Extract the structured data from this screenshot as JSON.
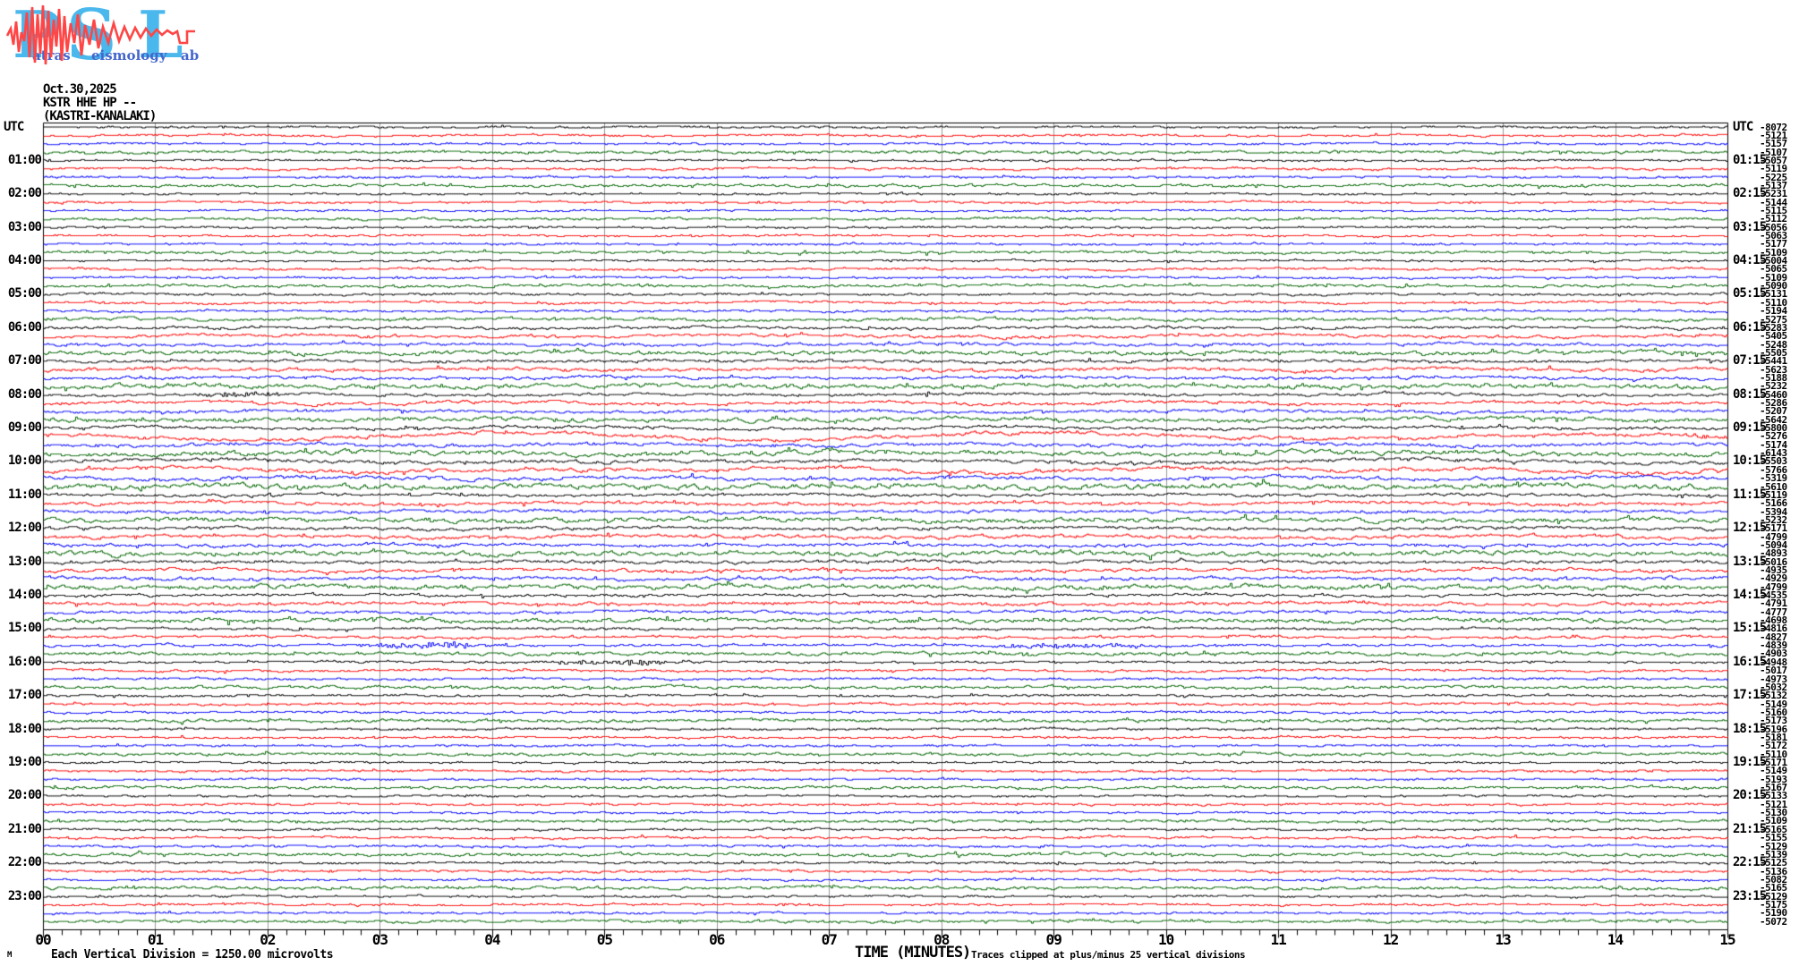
{
  "logo": {
    "letter_p": "P",
    "letter_s": "S",
    "letter_l": "L",
    "word_atras": "atras",
    "word_eismology": "eismology",
    "word_ab": "ab",
    "letter_color": "#4ab8ec",
    "word_color": "#4466cc",
    "wave_color": "#ff4545"
  },
  "header": {
    "date": "Oct.30,2025",
    "station": "KSTR HHE HP --",
    "location": "(KASTRI-KANALAKI)"
  },
  "axis": {
    "utc_left": "UTC",
    "utc_right": "UTC",
    "left_times": [
      "01:00",
      "02:00",
      "03:00",
      "04:00",
      "05:00",
      "06:00",
      "07:00",
      "08:00",
      "09:00",
      "10:00",
      "11:00",
      "12:00",
      "13:00",
      "14:00",
      "15:00",
      "16:00",
      "17:00",
      "18:00",
      "19:00",
      "20:00",
      "21:00",
      "22:00",
      "23:00"
    ],
    "right_times": [
      "01:15",
      "02:15",
      "03:15",
      "04:15",
      "05:15",
      "06:15",
      "07:15",
      "08:15",
      "09:15",
      "10:15",
      "11:15",
      "12:15",
      "13:15",
      "14:15",
      "15:15",
      "16:15",
      "17:15",
      "18:15",
      "19:15",
      "20:15",
      "21:15",
      "22:15",
      "23:15"
    ],
    "x_labels": [
      "00",
      "01",
      "02",
      "03",
      "04",
      "05",
      "06",
      "07",
      "08",
      "09",
      "10",
      "11",
      "12",
      "13",
      "14",
      "15"
    ],
    "x_title": "TIME (MINUTES)"
  },
  "footer": {
    "mark": "M",
    "scale_note": "Each Vertical Division = 1250.00 microvolts",
    "clip_note": "Traces clipped at plus/minus 25 vertical divisions"
  },
  "chart_data": {
    "type": "line",
    "title": "KSTR HHE HP -- (KASTRI-KANALAKI) helicorder, Oct.30,2025",
    "xlabel": "TIME (MINUTES)",
    "x_range_minutes": [
      0,
      15
    ],
    "minor_tick_seconds": 10,
    "rows_per_hour": 4,
    "minutes_per_row": 15,
    "hours": [
      "00",
      "01",
      "02",
      "03",
      "04",
      "05",
      "06",
      "07",
      "08",
      "09",
      "10",
      "11",
      "12",
      "13",
      "14",
      "15",
      "16",
      "17",
      "18",
      "19",
      "20",
      "21",
      "22",
      "23"
    ],
    "trace_colors": [
      "#000000",
      "#ff0000",
      "#0000ff",
      "#006600"
    ],
    "grid_color": "#999999",
    "frame_color": "#000000",
    "right_edge_offsets": [
      "-8072",
      "-5121",
      "-5157",
      "-5107",
      "-5057",
      "-5119",
      "-5225",
      "-5137",
      "-5231",
      "-5144",
      "-5115",
      "-5112",
      "-5056",
      "-5063",
      "-5177",
      "-5109",
      "-5004",
      "-5065",
      "-5109",
      "-5090",
      "-5131",
      "-5110",
      "-5194",
      "-5275",
      "-5283",
      "-5405",
      "-5248",
      "-5505",
      "-5441",
      "-5623",
      "-5188",
      "-5232",
      "-5460",
      "-5286",
      "-5207",
      "-5642",
      "-5800",
      "-5276",
      "-5174",
      "-6143",
      "-5503",
      "-5766",
      "-5319",
      "-5610",
      "-5119",
      "-5166",
      "-5394",
      "-5232",
      "-5171",
      "-4799",
      "-5094",
      "-4893",
      "-5016",
      "-4935",
      "-4929",
      "-4799",
      "-4535",
      "-4791",
      "-4777",
      "-4698",
      "-4816",
      "-4827",
      "-4839",
      "-4903",
      "-4948",
      "-5017",
      "-4973",
      "-5032",
      "-5132",
      "-5149",
      "-5160",
      "-5173",
      "-5196",
      "-5181",
      "-5172",
      "-5110",
      "-5171",
      "-5149",
      "-5193",
      "-5167",
      "-5133",
      "-5121",
      "-5130",
      "-5109",
      "-5165",
      "-5155",
      "-5129",
      "-5139",
      "-5125",
      "-5136",
      "-5082",
      "-5165",
      "-5129",
      "-5175",
      "-5190",
      "-5072"
    ],
    "noise_hf_by_hour": [
      0.9,
      0.9,
      0.8,
      0.8,
      0.9,
      1.0,
      1.4,
      1.5,
      1.4,
      1.6,
      1.8,
      1.5,
      1.6,
      1.6,
      1.4,
      1.1,
      1.0,
      1.0,
      0.9,
      0.9,
      0.9,
      1.0,
      1.0,
      0.9
    ],
    "noise_slow_by_hour": [
      0.5,
      0.5,
      0.4,
      0.4,
      0.5,
      0.6,
      0.9,
      1.0,
      1.1,
      1.5,
      1.4,
      1.0,
      1.0,
      0.9,
      0.8,
      0.5,
      0.5,
      0.5,
      0.4,
      0.4,
      0.4,
      0.5,
      0.5,
      0.4
    ],
    "events": [
      {
        "trace": 32,
        "kind": "burst",
        "minute": 1.7,
        "width_min": 0.3,
        "amp": 1.8
      },
      {
        "trace": 37,
        "kind": "swell",
        "amp": 2.6
      },
      {
        "trace": 40,
        "kind": "swell",
        "amp": 1.6
      },
      {
        "trace": 41,
        "kind": "swell",
        "amp": 1.8
      },
      {
        "trace": 62,
        "kind": "burst",
        "minute": 3.4,
        "width_min": 0.35,
        "amp": 3.2
      },
      {
        "trace": 62,
        "kind": "burst",
        "minute": 9.1,
        "width_min": 0.6,
        "amp": 1.6
      },
      {
        "trace": 64,
        "kind": "burst",
        "minute": 5.1,
        "width_min": 0.45,
        "amp": 2.0
      }
    ]
  }
}
